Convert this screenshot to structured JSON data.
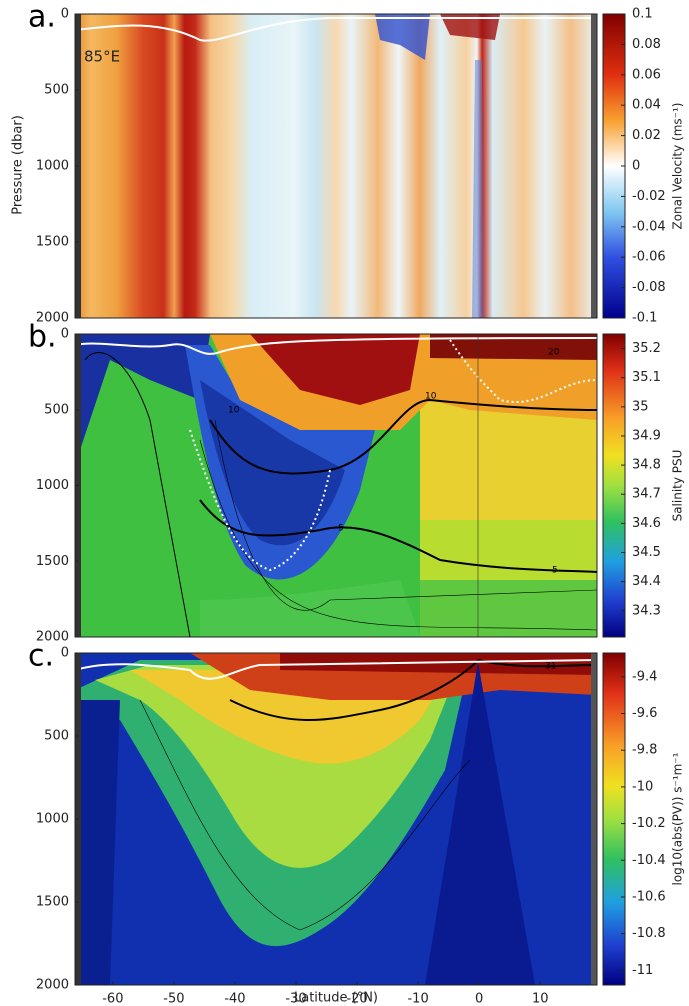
{
  "chart_data": [
    {
      "type": "heatmap",
      "panel_label": "a.",
      "annotation": "85°E",
      "y_label": "Pressure (dbar)",
      "xlim": [
        -66.2,
        19.3
      ],
      "ylim": [
        0,
        2000
      ],
      "y_inverted": true,
      "yticks": [
        0,
        500,
        1000,
        1500,
        2000
      ],
      "colorbar": {
        "label": "Zonal Velocity (ms⁻¹)",
        "lim": [
          -0.1,
          0.1
        ],
        "ticks": [
          0.1,
          0.08,
          0.06,
          0.04,
          0.02,
          0,
          -0.02,
          -0.04,
          -0.06,
          -0.08,
          -0.1
        ]
      }
    },
    {
      "type": "heatmap",
      "panel_label": "b.",
      "contour_labels": [
        10,
        10,
        5,
        5,
        20
      ],
      "xlim": [
        -66.2,
        19.3
      ],
      "ylim": [
        0,
        2000
      ],
      "y_inverted": true,
      "yticks": [
        0,
        500,
        1000,
        1500,
        2000
      ],
      "colorbar": {
        "label": "Salinity PSU",
        "lim": [
          34.21,
          35.25
        ],
        "ticks": [
          35.2,
          35.1,
          35,
          34.9,
          34.8,
          34.7,
          34.6,
          34.5,
          34.4,
          34.3
        ]
      }
    },
    {
      "type": "heatmap",
      "panel_label": "c.",
      "contour_labels": [
        31
      ],
      "x_label": "Latitude (°N)",
      "xlim": [
        -66.2,
        19.3
      ],
      "ylim": [
        0,
        2000
      ],
      "y_inverted": true,
      "yticks": [
        0,
        500,
        1000,
        1500,
        2000
      ],
      "xticks": [
        -60,
        -50,
        -40,
        -30,
        -20,
        -10,
        0,
        10
      ],
      "colorbar": {
        "label": "log10(abs(PV)) s⁻¹m⁻¹",
        "lim": [
          -11.08,
          -9.27
        ],
        "ticks": [
          -9.4,
          -9.6,
          -9.8,
          -10,
          -10.2,
          -10.4,
          -10.6,
          -10.8,
          -11
        ]
      }
    }
  ]
}
